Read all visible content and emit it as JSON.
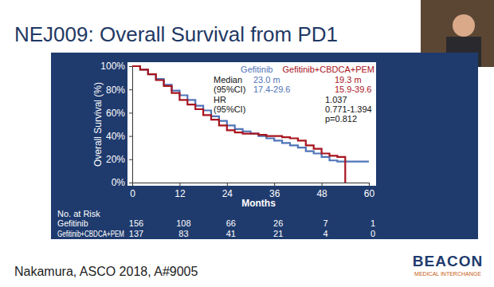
{
  "chart_data": {
    "type": "line",
    "title": "NEJ009: Overall Survival from PD1",
    "x_label": "Months",
    "y_label": "Overall Survival (%)",
    "x": [
      0,
      2,
      4,
      6,
      8,
      10,
      12,
      14,
      16,
      18,
      20,
      22,
      24,
      26,
      28,
      30,
      32,
      34,
      36,
      38,
      40,
      42,
      44,
      46,
      48,
      50,
      52,
      54,
      56,
      58,
      60
    ],
    "series": [
      {
        "name": "Gefitinib",
        "color": "#4f74b8",
        "line_style": "step",
        "values": [
          100,
          97,
          93,
          89,
          84,
          79,
          75,
          71,
          66,
          62,
          57,
          53,
          49,
          46,
          44,
          42,
          40,
          38,
          36,
          34,
          32,
          30,
          27,
          25,
          22,
          19,
          18,
          18,
          18,
          18,
          18
        ]
      },
      {
        "name": "Gefitinib+CBDCA+PEM",
        "color": "#a8141e",
        "line_style": "step",
        "values": [
          100,
          97,
          93,
          88,
          83,
          77,
          71,
          67,
          63,
          58,
          54,
          49,
          45,
          43,
          42,
          42,
          41,
          40,
          40,
          39,
          38,
          36,
          32,
          29,
          25,
          23,
          22,
          0,
          null,
          null,
          null
        ]
      }
    ],
    "xlim": [
      0,
      60
    ],
    "xticks": [
      0,
      12,
      24,
      36,
      48,
      60
    ],
    "ylim": [
      0,
      100
    ],
    "yticks": [
      {
        "value": 0,
        "label": "0%"
      },
      {
        "value": 20,
        "label": "20%"
      },
      {
        "value": 40,
        "label": "40%"
      },
      {
        "value": 60,
        "label": "60%"
      },
      {
        "value": 80,
        "label": "80%"
      },
      {
        "value": 100,
        "label": "100%"
      }
    ],
    "grid": false,
    "legend": "top-right",
    "annotations": [
      {
        "label": "Median",
        "texts": [
          "23.0 m",
          "19.3 m"
        ]
      },
      {
        "label": "(95%CI)",
        "texts": [
          "17.4-29.6",
          "15.9-39.6"
        ]
      },
      {
        "label": "HR",
        "texts": [
          "1.037"
        ]
      },
      {
        "label": "(95%CI)",
        "texts": [
          "0.771-1.394"
        ]
      },
      {
        "texts": [
          "p=0.812"
        ]
      }
    ],
    "risk_table": {
      "title": "No. at Risk",
      "rows": [
        {
          "label": "Gefitinib",
          "values": [
            156,
            108,
            66,
            26,
            7,
            1
          ]
        },
        {
          "label": "Gefitinib+CBDCA+PEM",
          "values": [
            137,
            83,
            41,
            21,
            4,
            0
          ]
        }
      ]
    }
  },
  "citation": "Nakamura, ASCO 2018, A#9005",
  "logo": {
    "text": "BEACON",
    "subtext": "MEDICAL INTERCHANGE"
  }
}
